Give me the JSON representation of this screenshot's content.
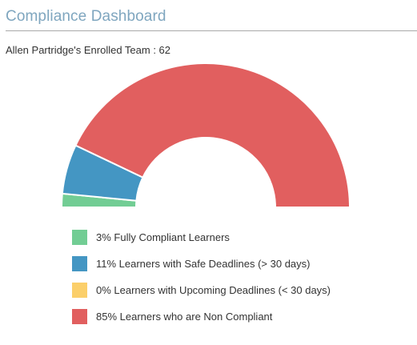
{
  "header": {
    "title": "Compliance Dashboard",
    "team_line": "Allen Partridge's Enrolled Team : 62"
  },
  "colors": {
    "title": "#7fa6bf",
    "fully_compliant": "#72cd94",
    "safe_deadlines": "#4496c3",
    "upcoming_deadlines": "#fbcf6a",
    "non_compliant": "#e15f5f"
  },
  "chart_data": {
    "type": "pie",
    "style": "half-donut",
    "title": "",
    "series": [
      {
        "name": "Fully Compliant Learners",
        "value": 3,
        "color": "#72cd94"
      },
      {
        "name": "Learners with Safe Deadlines (> 30 days)",
        "value": 11,
        "color": "#4496c3"
      },
      {
        "name": "Learners with Upcoming Deadlines (< 30 days)",
        "value": 0,
        "color": "#fbcf6a"
      },
      {
        "name": "Learners who are Non Compliant",
        "value": 85,
        "color": "#e15f5f"
      }
    ]
  },
  "legend": {
    "items": [
      {
        "label": "3% Fully Compliant Learners",
        "color": "#72cd94"
      },
      {
        "label": "11% Learners with Safe Deadlines (> 30 days)",
        "color": "#4496c3"
      },
      {
        "label": "0% Learners with Upcoming Deadlines (< 30 days)",
        "color": "#fbcf6a"
      },
      {
        "label": "85% Learners who are Non Compliant",
        "color": "#e15f5f"
      }
    ]
  }
}
